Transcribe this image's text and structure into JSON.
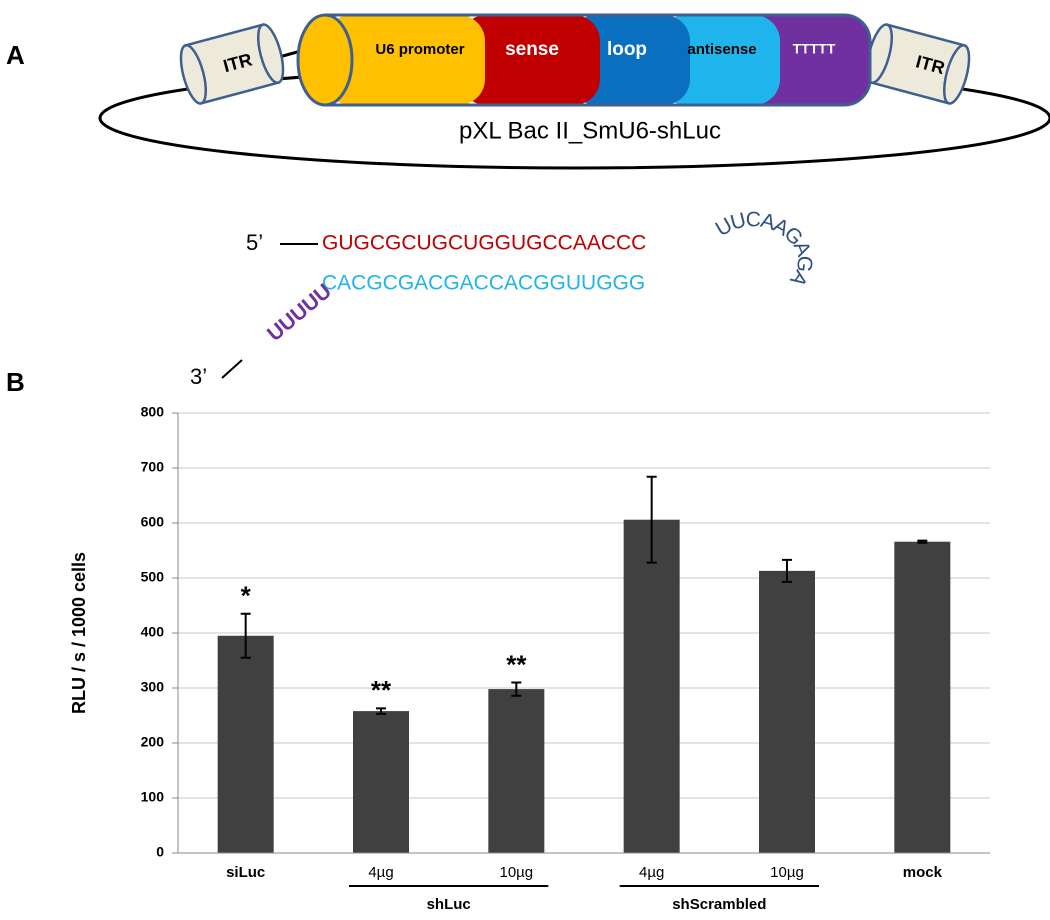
{
  "panels": [
    "A",
    "B"
  ],
  "diagram": {
    "plasmid": "pXL Bac II_SmU6-shLuc",
    "itr": [
      "ITR",
      "ITR"
    ],
    "segments": [
      "U6 promoter",
      "sense",
      "loop",
      "antisense",
      "TTTTT"
    ],
    "five_prime": "5’",
    "three_prime": "3’",
    "sense_seq": "GUGCGCUGCUGGUGCCAACCC",
    "antisense_seq": "CACGCGACGACCACGGUUGGG",
    "loop_seq": "UUCAAGAGA",
    "poly_u": "UUUUU"
  },
  "chart_data": {
    "type": "bar",
    "y_label": "RLU / s / 1000 cells",
    "categories": [
      "siLuc",
      "4µg",
      "10µg",
      "4µg",
      "10µg",
      "mock"
    ],
    "values": [
      395,
      258,
      298,
      606,
      513,
      566
    ],
    "errors": [
      40,
      5,
      12,
      78,
      20,
      2
    ],
    "annotations": [
      "*",
      "**",
      "**",
      null,
      null,
      null
    ],
    "groups": [
      "shLuc",
      "shScrambled"
    ],
    "color": "#404040",
    "ylim": [
      0,
      800
    ],
    "yticks": [
      0,
      100,
      200,
      300,
      400,
      500,
      600,
      700,
      800
    ],
    "grid": true
  }
}
